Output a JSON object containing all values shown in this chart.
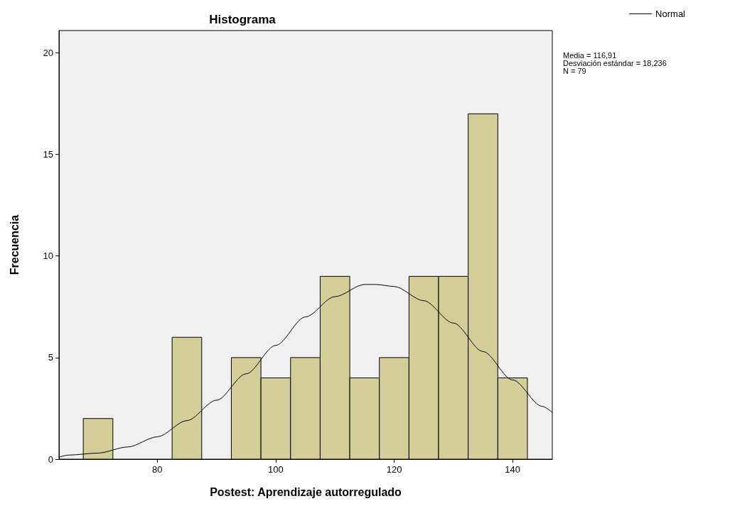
{
  "chart_data": {
    "type": "histogram",
    "title": "Histograma",
    "xlabel": "Postest: Aprendizaje autorregulado",
    "ylabel": "Frecuencia",
    "bins": [
      67.5,
      72.5,
      77.5,
      82.5,
      87.5,
      92.5,
      97.5,
      102.5,
      107.5,
      112.5,
      117.5,
      122.5,
      127.5,
      132.5,
      137.5,
      142.5
    ],
    "values": [
      2,
      0,
      0,
      6,
      0,
      5,
      4,
      5,
      9,
      4,
      5,
      9,
      9,
      17,
      4
    ],
    "color": "#d3ce97",
    "series": [
      {
        "type": "line",
        "name": "Normal",
        "color": "#000000",
        "x": [
          63.4,
          65,
          70,
          75,
          80,
          85,
          90,
          95,
          100,
          105,
          110,
          115,
          116.9,
          120,
          125,
          130,
          135,
          140,
          145,
          146.7
        ],
        "values": [
          0.1,
          0.2,
          0.3,
          0.6,
          1.1,
          1.9,
          2.9,
          4.2,
          5.6,
          7.0,
          8.0,
          8.6,
          8.6,
          8.5,
          7.8,
          6.7,
          5.3,
          3.9,
          2.6,
          2.3
        ]
      }
    ],
    "xlim": [
      63.4,
      146.7
    ],
    "xticks": [
      80,
      100,
      120,
      140
    ],
    "ylim": [
      0,
      21.1
    ],
    "yticks": [
      0,
      5,
      10,
      15,
      20
    ],
    "grid": false,
    "legend": "top right",
    "marker": "none",
    "annotations": [
      "Media = 116,91",
      "Desviación estándar = 18,236",
      "N = 79"
    ]
  }
}
